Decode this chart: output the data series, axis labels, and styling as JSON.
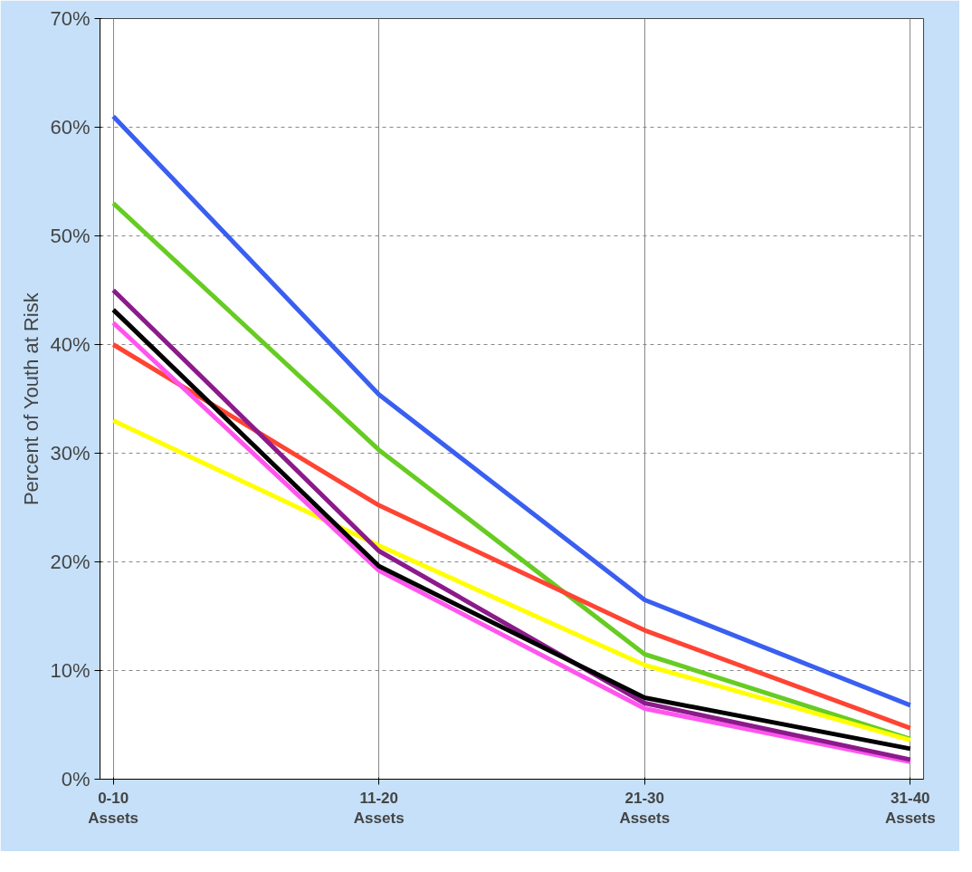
{
  "chart_data": {
    "type": "line",
    "ylabel": "Percent of Youth at Risk",
    "categories": [
      "0-10\nAssets",
      "11-20\nAssets",
      "21-30\nAssets",
      "31-40\nAssets"
    ],
    "ylim": [
      0,
      70
    ],
    "yticks": [
      {
        "value": 0,
        "label": "0%"
      },
      {
        "value": 10,
        "label": "10%"
      },
      {
        "value": 20,
        "label": "20%"
      },
      {
        "value": 30,
        "label": "30%"
      },
      {
        "value": 40,
        "label": "40%"
      },
      {
        "value": 50,
        "label": "50%"
      },
      {
        "value": 60,
        "label": "60%"
      },
      {
        "value": 70,
        "label": "70%"
      }
    ],
    "grid": true,
    "marker": "none",
    "line_style": "solid",
    "series": [
      {
        "color": "#3a5ff0",
        "values": [
          61,
          35.4,
          16.5,
          6.8
        ]
      },
      {
        "color": "#66cc22",
        "values": [
          53,
          30.3,
          11.5,
          3.7
        ]
      },
      {
        "color": "#ffff00",
        "values": [
          33,
          21.5,
          10.5,
          3.6
        ]
      },
      {
        "color": "#ff4433",
        "values": [
          40,
          25.2,
          13.7,
          4.7
        ]
      },
      {
        "color": "#ff55ee",
        "values": [
          42,
          19.2,
          6.5,
          1.6
        ]
      },
      {
        "color": "#8b1a8b",
        "values": [
          45,
          21,
          7,
          1.8
        ]
      },
      {
        "color": "#000000",
        "values": [
          43.2,
          19.6,
          7.5,
          2.8
        ]
      }
    ]
  }
}
